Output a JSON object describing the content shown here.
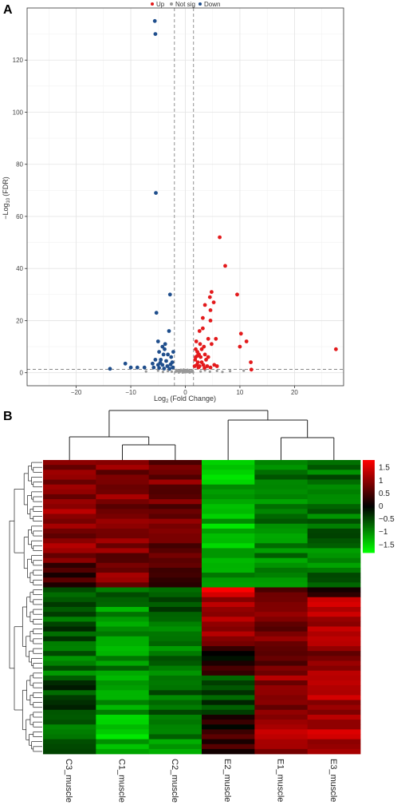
{
  "panels": {
    "a_label": "A",
    "b_label": "B"
  },
  "chart_data": [
    {
      "type": "scatter",
      "subtype": "volcano",
      "title": "",
      "xlabel_prefix": "Log",
      "xlabel_sub": "2",
      "xlabel_suffix": "(Fold Change)",
      "ylabel_prefix": "−Log",
      "ylabel_sub": "10",
      "ylabel_suffix": "(FDR)",
      "xlim": [
        -29,
        29
      ],
      "ylim": [
        -5,
        140
      ],
      "xticks": [
        -20,
        -10,
        0,
        10,
        20
      ],
      "yticks": [
        0,
        20,
        40,
        60,
        80,
        100,
        120
      ],
      "grid": true,
      "legend_position": "top",
      "fc_thresholds": [
        -2,
        1.5
      ],
      "fdr_threshold": 1.3,
      "colors": {
        "Up": "#e31a1c",
        "Not sig": "#999999",
        "Down": "#1f4e8c"
      },
      "series": [
        {
          "name": "Up",
          "points": [
            [
              6.3,
              52
            ],
            [
              7.3,
              41
            ],
            [
              4.8,
              31
            ],
            [
              4.5,
              29
            ],
            [
              5.2,
              27
            ],
            [
              9.5,
              30
            ],
            [
              4.6,
              24
            ],
            [
              3.6,
              26
            ],
            [
              3.2,
              21
            ],
            [
              4.6,
              20
            ],
            [
              10.2,
              15
            ],
            [
              11.2,
              12
            ],
            [
              10.0,
              10
            ],
            [
              3.2,
              17
            ],
            [
              2.6,
              16
            ],
            [
              4.2,
              13
            ],
            [
              2.0,
              12
            ],
            [
              2.7,
              11
            ],
            [
              3.0,
              9
            ],
            [
              3.4,
              10
            ],
            [
              4.8,
              11
            ],
            [
              5.6,
              13
            ],
            [
              2.2,
              8
            ],
            [
              2.5,
              7
            ],
            [
              3.6,
              7
            ],
            [
              4.2,
              6
            ],
            [
              1.8,
              5
            ],
            [
              2.3,
              4
            ],
            [
              3.0,
              4
            ],
            [
              2.1,
              3
            ],
            [
              1.7,
              2.5
            ],
            [
              2.6,
              2.5
            ],
            [
              3.3,
              3
            ],
            [
              4.0,
              2.5
            ],
            [
              5.3,
              3
            ],
            [
              12.0,
              4
            ],
            [
              12.1,
              1.2
            ],
            [
              27.6,
              9
            ],
            [
              1.9,
              6
            ],
            [
              2.8,
              6
            ],
            [
              3.8,
              5
            ],
            [
              2.4,
              2
            ],
            [
              3.5,
              1.8
            ],
            [
              4.6,
              2
            ],
            [
              5.8,
              2.5
            ],
            [
              1.9,
              9
            ],
            [
              2.2,
              6.5
            ]
          ]
        },
        {
          "name": "Not sig",
          "points": [
            [
              -1.8,
              0.3
            ],
            [
              -1.4,
              0.6
            ],
            [
              -1.0,
              0.4
            ],
            [
              -0.6,
              0.8
            ],
            [
              -0.2,
              0.2
            ],
            [
              0.2,
              0.5
            ],
            [
              0.6,
              0.7
            ],
            [
              1.0,
              0.3
            ],
            [
              1.3,
              0.9
            ],
            [
              -1.6,
              1.0
            ],
            [
              -0.8,
              1.1
            ],
            [
              0.4,
              1.1
            ],
            [
              -1.2,
              0.1
            ],
            [
              -0.4,
              0.5
            ],
            [
              0.0,
              0.9
            ],
            [
              0.8,
              0.1
            ],
            [
              1.2,
              0.5
            ],
            [
              -1.7,
              0.6
            ],
            [
              -0.3,
              1.2
            ],
            [
              0.5,
              0.3
            ],
            [
              -2.5,
              0.4
            ],
            [
              -3.2,
              0.6
            ],
            [
              -4.1,
              0.3
            ],
            [
              -5.0,
              0.8
            ],
            [
              2.8,
              0.5
            ],
            [
              3.6,
              0.9
            ],
            [
              4.5,
              0.4
            ],
            [
              5.8,
              0.7
            ],
            [
              6.8,
              0.3
            ],
            [
              8.2,
              0.6
            ],
            [
              10.7,
              0.8
            ],
            [
              -7.2,
              0.5
            ],
            [
              -0.9,
              0.8
            ],
            [
              0.1,
              0.2
            ],
            [
              -0.5,
              0.1
            ],
            [
              0.9,
              0.6
            ],
            [
              1.4,
              0.2
            ],
            [
              -1.1,
              0.7
            ],
            [
              0.3,
              0.9
            ],
            [
              -0.1,
              0.6
            ]
          ]
        },
        {
          "name": "Down",
          "points": [
            [
              -5.6,
              135
            ],
            [
              -5.5,
              130
            ],
            [
              -5.4,
              69
            ],
            [
              -2.8,
              30
            ],
            [
              -5.3,
              23
            ],
            [
              -3.0,
              16
            ],
            [
              -3.7,
              11
            ],
            [
              -5.0,
              12
            ],
            [
              -4.2,
              10
            ],
            [
              -4.8,
              8
            ],
            [
              -4.0,
              7
            ],
            [
              -3.2,
              7
            ],
            [
              -2.6,
              6
            ],
            [
              -5.5,
              5
            ],
            [
              -4.5,
              5
            ],
            [
              -3.5,
              4.5
            ],
            [
              -2.4,
              4
            ],
            [
              -5.0,
              3
            ],
            [
              -4.2,
              3
            ],
            [
              -3.3,
              2.5
            ],
            [
              -2.3,
              2
            ],
            [
              -5.8,
              2
            ],
            [
              -4.8,
              1.8
            ],
            [
              -3.9,
              1.6
            ],
            [
              -2.9,
              1.5
            ],
            [
              -7.5,
              2
            ],
            [
              -8.8,
              2
            ],
            [
              -11.0,
              3.5
            ],
            [
              -10.0,
              2
            ],
            [
              -13.8,
              1.5
            ],
            [
              -6.0,
              3.5
            ],
            [
              -2.2,
              8
            ],
            [
              -3.8,
              9
            ],
            [
              -4.6,
              3.8
            ],
            [
              -2.7,
              3.2
            ]
          ]
        }
      ]
    },
    {
      "type": "heatmap",
      "title": "",
      "columns": [
        "C3_muscle",
        "C1_muscle",
        "C2_muscle",
        "E2_muscle",
        "E1_muscle",
        "E3_muscle"
      ],
      "column_clusters": [
        [
          "C3_muscle",
          [
            "C1_muscle",
            "C2_muscle"
          ]
        ],
        [
          "E2_muscle",
          [
            "E1_muscle",
            "E3_muscle"
          ]
        ]
      ],
      "color_scale": {
        "min": -1.8,
        "max": 1.8,
        "low": "#00ff00",
        "mid": "#000000",
        "high": "#ff0000"
      },
      "colorbar_ticks": [
        1.5,
        1,
        0.5,
        0,
        -0.5,
        -1,
        -1.5
      ],
      "colorbar_tick_labels": [
        "1.5",
        "1",
        "0.5",
        "0",
        "−0.5",
        "−1",
        "−1.5"
      ],
      "row_blocks": [
        {
          "row_count": 21,
          "pattern": [
            1.0,
            0.9,
            0.8,
            -1.3,
            -0.9,
            -0.8
          ]
        },
        {
          "row_count": 5,
          "pattern": [
            0.5,
            1.0,
            0.5,
            -1.0,
            -0.8,
            -0.8
          ]
        },
        {
          "row_count": 2,
          "pattern": [
            -0.5,
            -0.8,
            -0.8,
            1.5,
            0.5,
            0.2
          ]
        },
        {
          "row_count": 10,
          "pattern": [
            -0.6,
            -1.0,
            -0.7,
            1.0,
            0.8,
            1.3
          ]
        },
        {
          "row_count": 6,
          "pattern": [
            -0.8,
            -1.0,
            -0.8,
            0.2,
            0.7,
            1.0
          ]
        },
        {
          "row_count": 8,
          "pattern": [
            -0.5,
            -1.2,
            -0.7,
            -0.5,
            1.0,
            1.2
          ]
        },
        {
          "row_count": 8,
          "pattern": [
            -0.6,
            -1.3,
            -0.9,
            0.3,
            1.1,
            1.3
          ]
        }
      ]
    }
  ]
}
